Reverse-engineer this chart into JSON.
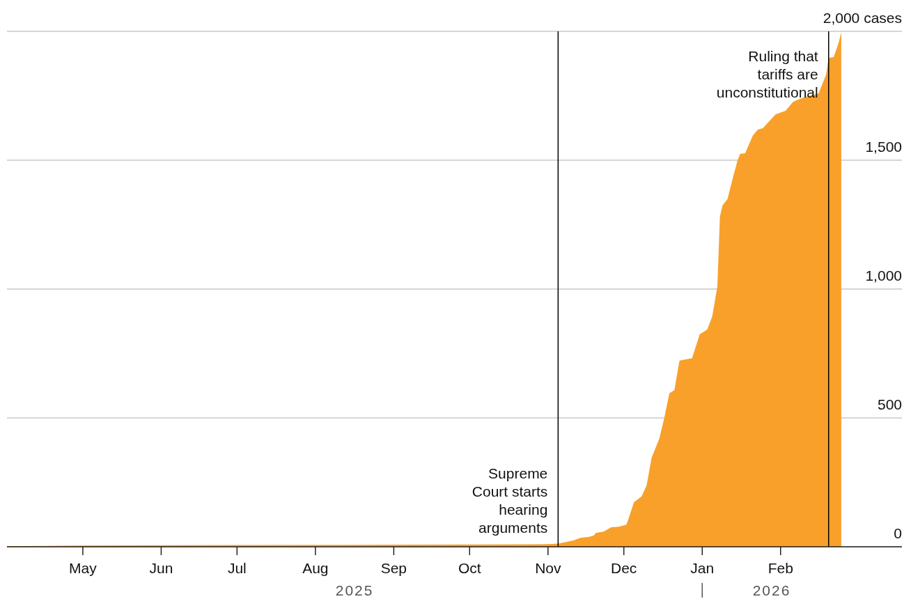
{
  "chart_data": {
    "type": "area",
    "x": [
      "2025-04-01",
      "2025-05-01",
      "2025-07-01",
      "2025-09-01",
      "2025-11-01",
      "2025-11-05",
      "2025-11-11",
      "2025-11-14",
      "2025-11-17",
      "2025-11-19",
      "2025-11-20",
      "2025-11-23",
      "2025-11-26",
      "2025-11-29",
      "2025-12-02",
      "2025-12-03",
      "2025-12-05",
      "2025-12-08",
      "2025-12-10",
      "2025-12-12",
      "2025-12-15",
      "2025-12-17",
      "2025-12-19",
      "2025-12-21",
      "2025-12-23",
      "2025-12-28",
      "2025-12-31",
      "2026-01-03",
      "2026-01-05",
      "2026-01-07",
      "2026-01-08",
      "2026-01-09",
      "2026-01-11",
      "2026-01-13",
      "2026-01-15",
      "2026-01-16",
      "2026-01-18",
      "2026-01-21",
      "2026-01-23",
      "2026-01-25",
      "2026-01-30",
      "2026-02-03",
      "2026-02-06",
      "2026-02-10",
      "2026-02-16",
      "2026-02-19",
      "2026-02-20",
      "2026-02-22",
      "2026-02-24",
      "2026-02-25"
    ],
    "series": [
      {
        "color": "#f9a02a",
        "values": [
          2,
          5,
          7,
          8,
          10,
          12,
          24,
          35,
          38,
          43,
          54,
          59,
          76,
          78,
          86,
          113,
          173,
          195,
          238,
          346,
          419,
          500,
          595,
          608,
          722,
          732,
          824,
          843,
          895,
          1011,
          1281,
          1324,
          1349,
          1427,
          1500,
          1524,
          1527,
          1595,
          1619,
          1624,
          1678,
          1692,
          1727,
          1743,
          1759,
          1832,
          1897,
          1900,
          1957,
          1997
        ]
      }
    ],
    "xlim": [
      "2025-04-01",
      "2026-03-21"
    ],
    "xticks": [
      {
        "value": "2025-05-01",
        "label": "May"
      },
      {
        "value": "2025-06-01",
        "label": "Jun"
      },
      {
        "value": "2025-07-01",
        "label": "Jul"
      },
      {
        "value": "2025-08-01",
        "label": "Aug"
      },
      {
        "value": "2025-09-01",
        "label": "Sep"
      },
      {
        "value": "2025-10-01",
        "label": "Oct"
      },
      {
        "value": "2025-11-01",
        "label": "Nov"
      },
      {
        "value": "2025-12-01",
        "label": "Dec"
      },
      {
        "value": "2026-01-01",
        "label": "Jan"
      },
      {
        "value": "2026-02-01",
        "label": "Feb"
      }
    ],
    "ylim": [
      0,
      2000
    ],
    "yticks": [
      0,
      500,
      {
        "value": 1000,
        "label": "1,000"
      },
      {
        "value": 1500,
        "label": "1,500"
      },
      {
        "value": 2000,
        "label": "2,000 cases"
      }
    ],
    "grid": "y",
    "ref_lines": [
      {
        "axis": "x",
        "value": "2025-11-05",
        "label": "Supreme Court starts hearing arguments",
        "color": "#000000"
      },
      {
        "axis": "x",
        "value": "2026-02-20",
        "label": "Ruling that tariffs are unconstitutional",
        "color": "#000000"
      }
    ],
    "annotations": [
      "2025",
      "2026"
    ]
  }
}
